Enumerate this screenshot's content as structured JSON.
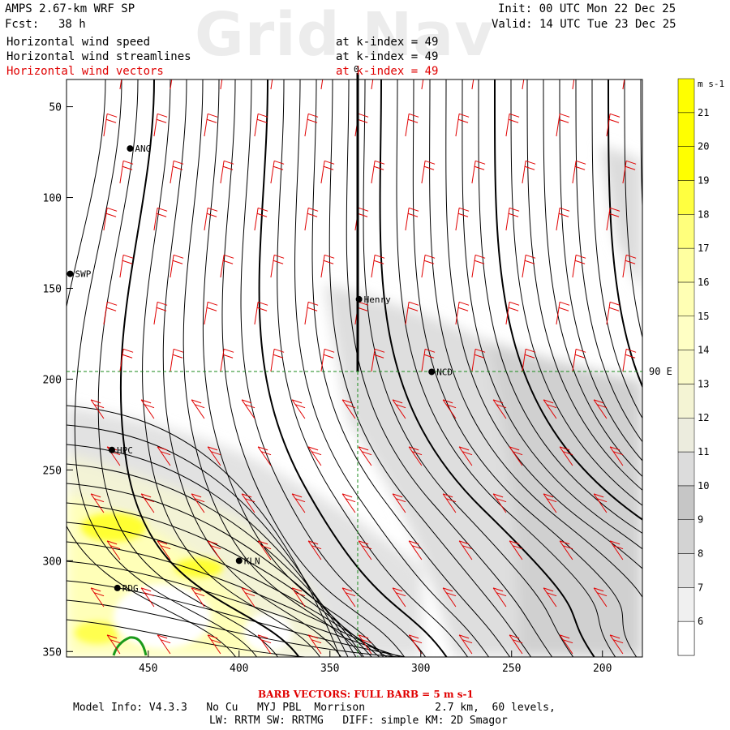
{
  "header": {
    "model": "AMPS 2.67-km WRF SP",
    "forecast_label": "Fcst:",
    "forecast_hours": "38 h",
    "init": "Init: 00 UTC Mon 22 Dec 25",
    "valid": "Valid: 14 UTC Tue 23 Dec 25",
    "watermark": "Grid Nav"
  },
  "fields": [
    {
      "name": "Horizontal wind speed",
      "level": "at k-index = 49",
      "color": "#000000"
    },
    {
      "name": "Horizontal wind streamlines",
      "level": "at k-index = 49",
      "color": "#000000"
    },
    {
      "name": "Horizontal wind vectors",
      "level": "at k-index = 49",
      "color": "#e00000"
    }
  ],
  "axes": {
    "x_ticks": [
      "450",
      "400",
      "350",
      "300",
      "250",
      "200"
    ],
    "y_ticks": [
      "50",
      "100",
      "150",
      "200",
      "250",
      "300",
      "350"
    ],
    "x_range": [
      495,
      178
    ],
    "y_range": [
      35,
      353
    ],
    "top_label": "0",
    "right_label": "90 E"
  },
  "colorbar": {
    "units": "m s-1",
    "ticks": [
      "6",
      "7",
      "8",
      "9",
      "10",
      "11",
      "12",
      "13",
      "14",
      "15",
      "16",
      "17",
      "18",
      "19",
      "20",
      "21"
    ],
    "colors": [
      "#ffffff",
      "#f0f0f0",
      "#e0e0e0",
      "#d3d3d3",
      "#c6c6c6",
      "#dcdcdc",
      "#ececde",
      "#f4f4d4",
      "#fafac8",
      "#ffffc4",
      "#ffffb4",
      "#ffffa0",
      "#ffff7c",
      "#ffff40",
      "#ffff00",
      "#ffff00"
    ]
  },
  "stations": [
    {
      "label": "ANG",
      "x": 460,
      "y": 73
    },
    {
      "label": "SWP",
      "x": 493,
      "y": 142
    },
    {
      "label": "Henry",
      "x": 334,
      "y": 156
    },
    {
      "label": "NCD",
      "x": 294,
      "y": 196
    },
    {
      "label": "HPC",
      "x": 470,
      "y": 239
    },
    {
      "label": "KLN",
      "x": 400,
      "y": 300
    },
    {
      "label": "RDG",
      "x": 467,
      "y": 315
    }
  ],
  "footer": {
    "barb_note": "BARB VECTORS: FULL BARB = 5 m s-1",
    "model_info": "Model Info: V4.3.3   No Cu   MYJ PBL  Morrison           2.7 km,  60 levels,",
    "physics": "LW: RRTM SW: RRTMG   DIFF: simple KM: 2D Smagor"
  }
}
